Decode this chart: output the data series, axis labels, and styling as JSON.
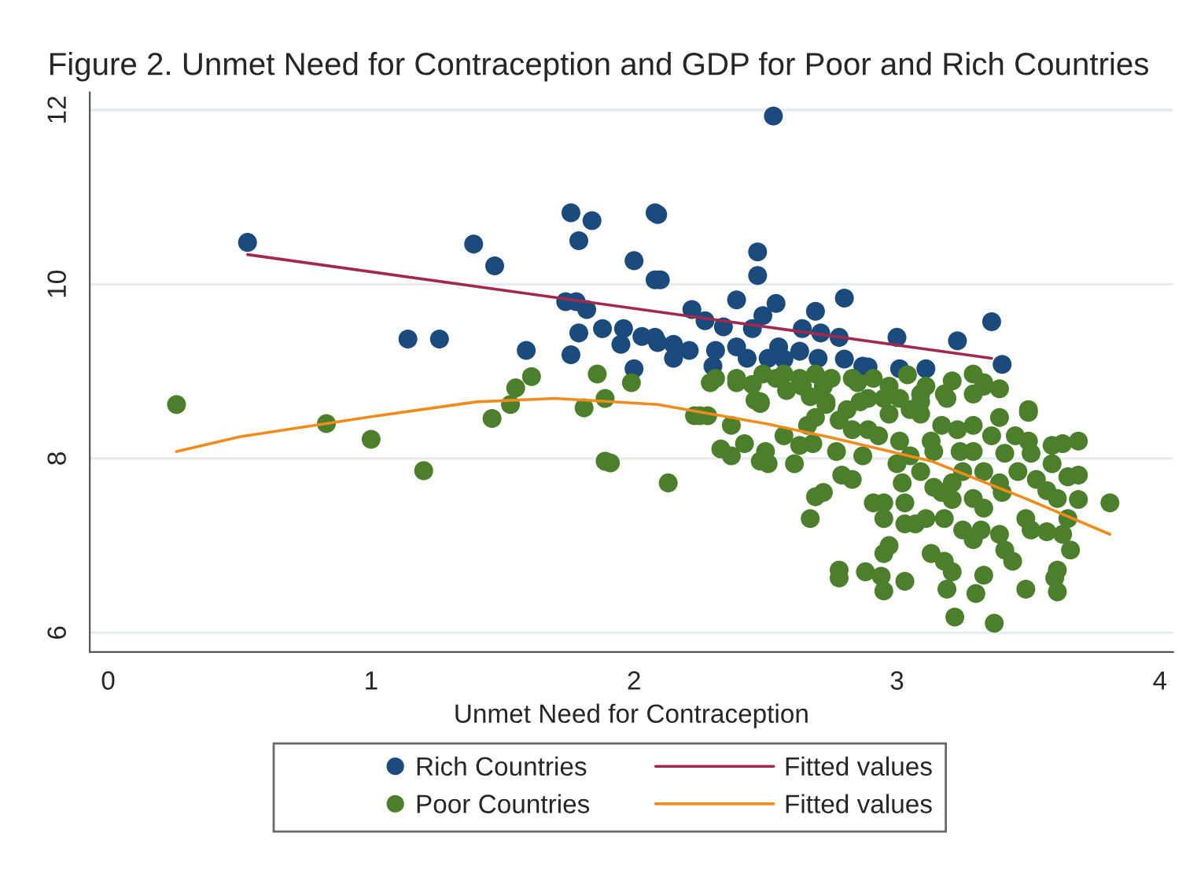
{
  "chart_data": {
    "type": "scatter",
    "title": "Figure 2. Unmet Need for Contraception and GDP for Poor and Rich Countries",
    "xlabel": "Unmet Need for Contraception",
    "xlim": [
      -0.07,
      4.05
    ],
    "ylim": [
      5.78,
      12.2
    ],
    "xticks": [
      0,
      1,
      2,
      3,
      4
    ],
    "yticks": [
      6,
      8,
      10,
      12
    ],
    "grid": "y",
    "legend": "bottom",
    "series": [
      {
        "name": "Rich Countries",
        "marker": "circle",
        "color": "#1b4a7c",
        "x": [
          0.53,
          1.39,
          1.47,
          1.14,
          1.26,
          1.59,
          1.76,
          1.76,
          1.84,
          1.79,
          2.0,
          2.08,
          2.08,
          1.74,
          1.78,
          1.82,
          1.79,
          1.88,
          1.96,
          1.95,
          2.0,
          2.03,
          2.08,
          2.53,
          2.09,
          2.47,
          2.47,
          2.1,
          2.39,
          2.54,
          2.8,
          2.69,
          2.22,
          2.27,
          2.34,
          2.45,
          2.49,
          2.64,
          2.71,
          2.78,
          3.0,
          3.23,
          3.36,
          3.4,
          2.09,
          2.15,
          2.21,
          2.15,
          2.31,
          2.3,
          2.39,
          2.43,
          2.55,
          2.57,
          2.63,
          2.7,
          2.8,
          2.87,
          3.01,
          3.11,
          2.89,
          2.51
        ],
        "values": [
          10.48,
          10.46,
          10.21,
          9.37,
          9.37,
          9.24,
          9.19,
          10.82,
          10.73,
          10.5,
          10.27,
          10.82,
          10.05,
          9.8,
          9.8,
          9.71,
          9.44,
          9.49,
          9.49,
          9.31,
          9.03,
          9.4,
          9.39,
          11.93,
          10.8,
          10.37,
          10.1,
          10.05,
          9.82,
          9.78,
          9.84,
          9.69,
          9.71,
          9.58,
          9.51,
          9.49,
          9.64,
          9.49,
          9.44,
          9.39,
          9.39,
          9.35,
          9.57,
          9.08,
          9.33,
          9.31,
          9.24,
          9.15,
          9.24,
          9.06,
          9.28,
          9.15,
          9.28,
          9.14,
          9.23,
          9.15,
          9.14,
          9.06,
          9.03,
          9.03,
          9.05,
          9.15
        ]
      },
      {
        "name": "Poor Countries",
        "marker": "circle",
        "color": "#4b7f2b",
        "x": [
          0.26,
          0.83,
          1.0,
          1.2,
          1.46,
          1.53,
          1.55,
          1.61,
          1.81,
          1.86,
          1.89,
          1.89,
          1.91,
          1.99,
          2.13,
          2.23,
          2.28,
          2.31,
          2.39,
          2.33,
          2.37,
          2.51,
          2.46,
          2.57,
          2.63,
          2.66,
          2.69,
          2.67,
          2.69,
          2.45,
          2.54,
          2.64,
          2.72,
          2.29,
          2.48,
          2.25,
          2.37,
          2.42,
          2.5,
          2.48,
          2.68,
          2.61,
          2.77,
          2.79,
          2.83,
          2.72,
          2.87,
          2.91,
          2.95,
          2.97,
          2.95,
          2.78,
          2.78,
          2.88,
          2.94,
          2.95,
          3.03,
          3.13,
          3.18,
          3.21,
          3.19,
          3.22,
          3.3,
          3.33,
          3.37,
          3.49,
          3.61,
          3.61,
          3.6,
          3.02,
          3.03,
          3.07,
          3.11,
          3.18,
          3.17,
          3.21,
          3.25,
          3.29,
          3.32,
          3.33,
          3.39,
          3.41,
          3.44,
          3.49,
          3.51,
          3.57,
          3.66,
          3.63,
          3.65,
          3.69,
          3.81,
          3.65,
          3.69,
          3.69,
          3.63,
          3.59,
          3.59,
          3.53,
          3.57,
          3.5,
          3.5,
          3.39,
          3.45,
          3.36,
          3.41,
          3.46,
          3.39,
          3.33,
          3.29,
          3.25,
          3.21,
          3.14,
          3.09,
          3.05,
          3.14,
          3.0,
          3.01,
          2.93,
          2.89,
          2.97,
          3.09,
          3.17,
          3.23,
          3.29,
          3.19,
          3.29,
          3.39,
          3.33,
          3.09,
          2.89,
          2.81,
          2.83,
          2.78,
          2.73,
          2.85,
          3.05,
          3.13,
          3.24,
          3.51,
          3.61,
          2.95,
          3.03,
          3.29,
          3.4,
          2.39,
          2.49,
          2.57,
          2.63,
          2.69,
          2.75,
          2.83,
          2.91,
          2.97,
          3.04,
          3.11,
          3.21,
          3.29,
          3.33,
          3.5,
          2.48,
          2.58,
          2.67,
          2.73,
          2.86,
          2.95,
          3.01,
          3.09,
          3.18
        ],
        "values": [
          8.62,
          8.4,
          8.22,
          7.86,
          8.46,
          8.62,
          8.81,
          8.94,
          8.58,
          8.97,
          8.69,
          7.97,
          7.95,
          8.87,
          7.72,
          8.49,
          8.49,
          8.92,
          8.92,
          8.11,
          8.03,
          7.94,
          8.67,
          8.26,
          8.15,
          8.38,
          8.47,
          7.31,
          7.56,
          8.85,
          8.92,
          8.83,
          8.83,
          8.87,
          8.63,
          8.49,
          8.38,
          8.17,
          8.08,
          7.97,
          8.17,
          7.94,
          8.08,
          7.81,
          7.76,
          7.61,
          8.03,
          7.49,
          7.31,
          7.0,
          6.91,
          6.72,
          6.63,
          6.7,
          6.65,
          6.48,
          6.59,
          6.91,
          6.82,
          6.7,
          6.5,
          6.18,
          6.45,
          6.66,
          6.11,
          6.5,
          6.72,
          6.47,
          6.63,
          7.72,
          7.49,
          7.25,
          7.31,
          7.31,
          7.61,
          7.53,
          7.18,
          7.07,
          7.18,
          7.43,
          7.13,
          6.95,
          6.82,
          7.31,
          7.18,
          7.16,
          6.95,
          7.13,
          7.31,
          7.53,
          7.49,
          7.79,
          7.81,
          8.2,
          8.17,
          8.15,
          7.94,
          7.76,
          7.63,
          8.2,
          8.53,
          8.47,
          8.26,
          8.26,
          8.06,
          7.85,
          7.72,
          7.85,
          8.08,
          7.85,
          7.72,
          7.67,
          7.85,
          8.03,
          8.08,
          7.94,
          8.2,
          8.26,
          8.33,
          8.51,
          8.51,
          8.38,
          8.33,
          8.38,
          8.69,
          8.74,
          8.8,
          8.87,
          8.74,
          8.69,
          8.56,
          8.33,
          8.44,
          8.62,
          8.87,
          8.56,
          8.2,
          8.08,
          8.06,
          7.54,
          7.49,
          7.25,
          7.54,
          7.61,
          8.87,
          8.97,
          8.97,
          8.92,
          8.97,
          8.92,
          8.92,
          8.92,
          8.83,
          8.96,
          8.83,
          8.89,
          8.97,
          8.83,
          8.56,
          8.65,
          8.78,
          8.71,
          8.65,
          8.65,
          8.69,
          8.69,
          8.65,
          8.74
        ]
      },
      {
        "name": "Fitted values",
        "type": "line",
        "color": "#a02a4e",
        "x": [
          0.53,
          3.36
        ],
        "values": [
          10.34,
          9.15
        ]
      },
      {
        "name": "Fitted values",
        "type": "line",
        "color": "#f08c1e",
        "x": [
          0.26,
          0.5,
          1.0,
          1.4,
          1.7,
          2.09,
          2.5,
          2.75,
          3.13,
          3.49,
          3.81
        ],
        "values": [
          8.08,
          8.25,
          8.48,
          8.65,
          8.69,
          8.62,
          8.4,
          8.24,
          7.97,
          7.54,
          7.13
        ]
      }
    ]
  }
}
